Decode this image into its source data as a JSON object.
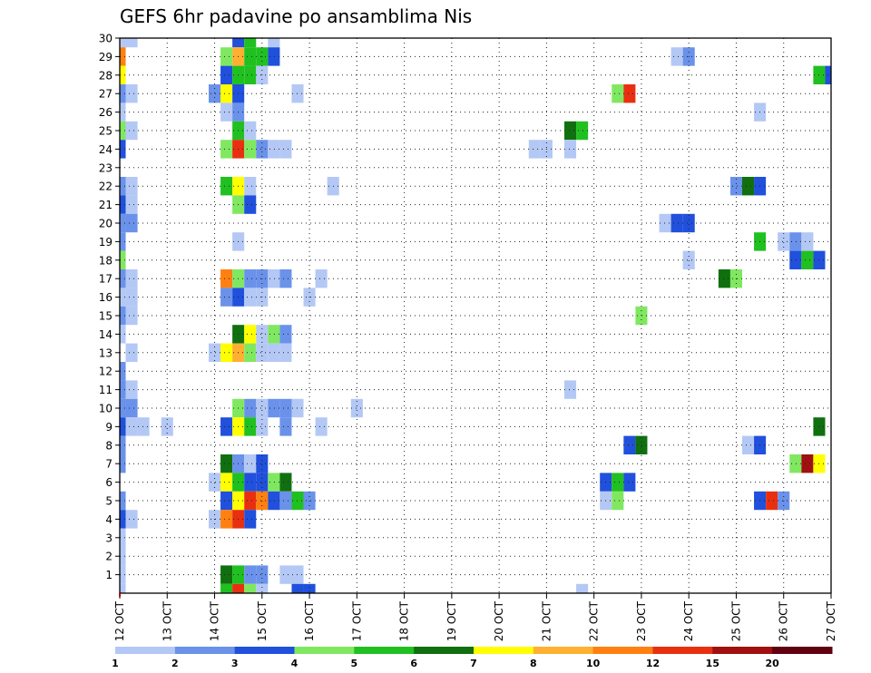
{
  "chart_data": {
    "type": "heatmap",
    "title": "GEFS 6hr padavine po ansamblima Nis",
    "xlabel": "",
    "ylabel": "",
    "x_tick_labels": [
      "12 OCT",
      "13 OCT",
      "14 OCT",
      "15 OCT",
      "16 OCT",
      "17 OCT",
      "18 OCT",
      "19 OCT",
      "20 OCT",
      "21 OCT",
      "22 OCT",
      "23 OCT",
      "24 OCT",
      "25 OCT",
      "26 OCT",
      "27 OCT"
    ],
    "y_tick_labels": [
      "1",
      "2",
      "3",
      "4",
      "5",
      "6",
      "7",
      "8",
      "9",
      "10",
      "11",
      "12",
      "13",
      "14",
      "15",
      "16",
      "17",
      "18",
      "19",
      "20",
      "21",
      "22",
      "23",
      "24",
      "25",
      "26",
      "27",
      "28",
      "29",
      "30"
    ],
    "x_unit": "6-hour step index from 12 OCT 00Z",
    "xlim": [
      0,
      60
    ],
    "ylim": [
      0,
      30
    ],
    "grid": true,
    "colorbar": {
      "labels": [
        "1",
        "2",
        "3",
        "4",
        "5",
        "6",
        "7",
        "8",
        "10",
        "12",
        "15",
        "20"
      ],
      "colors": [
        "#b4c8f5",
        "#6a92ea",
        "#2050dc",
        "#80e860",
        "#20c020",
        "#107010",
        "#ffff00",
        "#ffb030",
        "#ff8010",
        "#e83010",
        "#a01010",
        "#600010"
      ]
    },
    "cells": [
      {
        "x": 0,
        "y": 30,
        "c": 0
      },
      {
        "x": 1,
        "y": 30,
        "c": 0
      },
      {
        "x": 10,
        "y": 30,
        "c": 2
      },
      {
        "x": 11,
        "y": 30,
        "c": 4
      },
      {
        "x": 13,
        "y": 30,
        "c": 0
      },
      {
        "x": 0,
        "y": 29,
        "c": 8
      },
      {
        "x": 9,
        "y": 29,
        "c": 3
      },
      {
        "x": 10,
        "y": 29,
        "c": 7
      },
      {
        "x": 11,
        "y": 29,
        "c": 4
      },
      {
        "x": 12,
        "y": 29,
        "c": 4
      },
      {
        "x": 13,
        "y": 29,
        "c": 2
      },
      {
        "x": 47,
        "y": 29,
        "c": 0
      },
      {
        "x": 48,
        "y": 29,
        "c": 1
      },
      {
        "x": 0,
        "y": 28,
        "c": 6
      },
      {
        "x": 9,
        "y": 28,
        "c": 2
      },
      {
        "x": 10,
        "y": 28,
        "c": 4
      },
      {
        "x": 11,
        "y": 28,
        "c": 4
      },
      {
        "x": 12,
        "y": 28,
        "c": 0
      },
      {
        "x": 59,
        "y": 28,
        "c": 4
      },
      {
        "x": 60,
        "y": 28,
        "c": 2
      },
      {
        "x": 0,
        "y": 27,
        "c": 1
      },
      {
        "x": 1,
        "y": 27,
        "c": 0
      },
      {
        "x": 8,
        "y": 27,
        "c": 1
      },
      {
        "x": 9,
        "y": 27,
        "c": 6
      },
      {
        "x": 10,
        "y": 27,
        "c": 2
      },
      {
        "x": 15,
        "y": 27,
        "c": 0
      },
      {
        "x": 42,
        "y": 27,
        "c": 3
      },
      {
        "x": 43,
        "y": 27,
        "c": 9
      },
      {
        "x": 0,
        "y": 26,
        "c": 0
      },
      {
        "x": 9,
        "y": 26,
        "c": 0
      },
      {
        "x": 10,
        "y": 26,
        "c": 1
      },
      {
        "x": 54,
        "y": 26,
        "c": 0
      },
      {
        "x": 0,
        "y": 25,
        "c": 3
      },
      {
        "x": 1,
        "y": 25,
        "c": 0
      },
      {
        "x": 10,
        "y": 25,
        "c": 4
      },
      {
        "x": 11,
        "y": 25,
        "c": 0
      },
      {
        "x": 38,
        "y": 25,
        "c": 5
      },
      {
        "x": 39,
        "y": 25,
        "c": 4
      },
      {
        "x": 0,
        "y": 24,
        "c": 2
      },
      {
        "x": 9,
        "y": 24,
        "c": 3
      },
      {
        "x": 10,
        "y": 24,
        "c": 9
      },
      {
        "x": 11,
        "y": 24,
        "c": 3
      },
      {
        "x": 12,
        "y": 24,
        "c": 1
      },
      {
        "x": 13,
        "y": 24,
        "c": 0
      },
      {
        "x": 14,
        "y": 24,
        "c": 0
      },
      {
        "x": 35,
        "y": 24,
        "c": 0
      },
      {
        "x": 36,
        "y": 24,
        "c": 0
      },
      {
        "x": 38,
        "y": 24,
        "c": 0
      },
      {
        "x": 0,
        "y": 22,
        "c": 1
      },
      {
        "x": 1,
        "y": 22,
        "c": 0
      },
      {
        "x": 9,
        "y": 22,
        "c": 4
      },
      {
        "x": 10,
        "y": 22,
        "c": 6
      },
      {
        "x": 11,
        "y": 22,
        "c": 0
      },
      {
        "x": 18,
        "y": 22,
        "c": 0
      },
      {
        "x": 52,
        "y": 22,
        "c": 1
      },
      {
        "x": 53,
        "y": 22,
        "c": 5
      },
      {
        "x": 54,
        "y": 22,
        "c": 2
      },
      {
        "x": 0,
        "y": 21,
        "c": 2
      },
      {
        "x": 1,
        "y": 21,
        "c": 0
      },
      {
        "x": 10,
        "y": 21,
        "c": 3
      },
      {
        "x": 11,
        "y": 21,
        "c": 2
      },
      {
        "x": 0,
        "y": 20,
        "c": 1
      },
      {
        "x": 1,
        "y": 20,
        "c": 1
      },
      {
        "x": 46,
        "y": 20,
        "c": 0
      },
      {
        "x": 47,
        "y": 20,
        "c": 2
      },
      {
        "x": 48,
        "y": 20,
        "c": 2
      },
      {
        "x": 0,
        "y": 19,
        "c": 1
      },
      {
        "x": 10,
        "y": 19,
        "c": 0
      },
      {
        "x": 54,
        "y": 19,
        "c": 4
      },
      {
        "x": 56,
        "y": 19,
        "c": 0
      },
      {
        "x": 57,
        "y": 19,
        "c": 1
      },
      {
        "x": 58,
        "y": 19,
        "c": 0
      },
      {
        "x": 0,
        "y": 18,
        "c": 3
      },
      {
        "x": 48,
        "y": 18,
        "c": 0
      },
      {
        "x": 57,
        "y": 18,
        "c": 2
      },
      {
        "x": 58,
        "y": 18,
        "c": 4
      },
      {
        "x": 59,
        "y": 18,
        "c": 2
      },
      {
        "x": 0,
        "y": 17,
        "c": 1
      },
      {
        "x": 1,
        "y": 17,
        "c": 0
      },
      {
        "x": 9,
        "y": 17,
        "c": 8
      },
      {
        "x": 10,
        "y": 17,
        "c": 3
      },
      {
        "x": 11,
        "y": 17,
        "c": 1
      },
      {
        "x": 12,
        "y": 17,
        "c": 1
      },
      {
        "x": 13,
        "y": 17,
        "c": 0
      },
      {
        "x": 14,
        "y": 17,
        "c": 1
      },
      {
        "x": 17,
        "y": 17,
        "c": 0
      },
      {
        "x": 51,
        "y": 17,
        "c": 5
      },
      {
        "x": 52,
        "y": 17,
        "c": 3
      },
      {
        "x": 0,
        "y": 16,
        "c": 0
      },
      {
        "x": 1,
        "y": 16,
        "c": 0
      },
      {
        "x": 9,
        "y": 16,
        "c": 1
      },
      {
        "x": 10,
        "y": 16,
        "c": 2
      },
      {
        "x": 11,
        "y": 16,
        "c": 0
      },
      {
        "x": 12,
        "y": 16,
        "c": 0
      },
      {
        "x": 16,
        "y": 16,
        "c": 0
      },
      {
        "x": 0,
        "y": 15,
        "c": 1
      },
      {
        "x": 1,
        "y": 15,
        "c": 0
      },
      {
        "x": 44,
        "y": 15,
        "c": 3
      },
      {
        "x": 0,
        "y": 14,
        "c": 0
      },
      {
        "x": 10,
        "y": 14,
        "c": 5
      },
      {
        "x": 11,
        "y": 14,
        "c": 6
      },
      {
        "x": 12,
        "y": 14,
        "c": 0
      },
      {
        "x": 13,
        "y": 14,
        "c": 3
      },
      {
        "x": 14,
        "y": 14,
        "c": 1
      },
      {
        "x": 1,
        "y": 13,
        "c": 0
      },
      {
        "x": 8,
        "y": 13,
        "c": 0
      },
      {
        "x": 9,
        "y": 13,
        "c": 6
      },
      {
        "x": 10,
        "y": 13,
        "c": 7
      },
      {
        "x": 11,
        "y": 13,
        "c": 3
      },
      {
        "x": 12,
        "y": 13,
        "c": 0
      },
      {
        "x": 13,
        "y": 13,
        "c": 0
      },
      {
        "x": 14,
        "y": 13,
        "c": 0
      },
      {
        "x": 0,
        "y": 12,
        "c": 1
      },
      {
        "x": 0,
        "y": 11,
        "c": 1
      },
      {
        "x": 1,
        "y": 11,
        "c": 0
      },
      {
        "x": 38,
        "y": 11,
        "c": 0
      },
      {
        "x": 0,
        "y": 10,
        "c": 1
      },
      {
        "x": 1,
        "y": 10,
        "c": 1
      },
      {
        "x": 10,
        "y": 10,
        "c": 3
      },
      {
        "x": 11,
        "y": 10,
        "c": 1
      },
      {
        "x": 12,
        "y": 10,
        "c": 0
      },
      {
        "x": 13,
        "y": 10,
        "c": 1
      },
      {
        "x": 14,
        "y": 10,
        "c": 1
      },
      {
        "x": 15,
        "y": 10,
        "c": 0
      },
      {
        "x": 20,
        "y": 10,
        "c": 0
      },
      {
        "x": 0,
        "y": 9,
        "c": 2
      },
      {
        "x": 1,
        "y": 9,
        "c": 0
      },
      {
        "x": 2,
        "y": 9,
        "c": 0
      },
      {
        "x": 4,
        "y": 9,
        "c": 0
      },
      {
        "x": 9,
        "y": 9,
        "c": 2
      },
      {
        "x": 10,
        "y": 9,
        "c": 6
      },
      {
        "x": 11,
        "y": 9,
        "c": 4
      },
      {
        "x": 12,
        "y": 9,
        "c": 0
      },
      {
        "x": 14,
        "y": 9,
        "c": 1
      },
      {
        "x": 17,
        "y": 9,
        "c": 0
      },
      {
        "x": 59,
        "y": 9,
        "c": 5
      },
      {
        "x": 0,
        "y": 8,
        "c": 1
      },
      {
        "x": 43,
        "y": 8,
        "c": 2
      },
      {
        "x": 44,
        "y": 8,
        "c": 5
      },
      {
        "x": 53,
        "y": 8,
        "c": 0
      },
      {
        "x": 54,
        "y": 8,
        "c": 2
      },
      {
        "x": 0,
        "y": 7,
        "c": 1
      },
      {
        "x": 9,
        "y": 7,
        "c": 5
      },
      {
        "x": 10,
        "y": 7,
        "c": 1
      },
      {
        "x": 11,
        "y": 7,
        "c": 0
      },
      {
        "x": 12,
        "y": 7,
        "c": 2
      },
      {
        "x": 57,
        "y": 7,
        "c": 3
      },
      {
        "x": 58,
        "y": 7,
        "c": 10
      },
      {
        "x": 59,
        "y": 7,
        "c": 6
      },
      {
        "x": 8,
        "y": 6,
        "c": 0
      },
      {
        "x": 9,
        "y": 6,
        "c": 6
      },
      {
        "x": 10,
        "y": 6,
        "c": 4
      },
      {
        "x": 11,
        "y": 6,
        "c": 2
      },
      {
        "x": 12,
        "y": 6,
        "c": 2
      },
      {
        "x": 13,
        "y": 6,
        "c": 3
      },
      {
        "x": 14,
        "y": 6,
        "c": 5
      },
      {
        "x": 41,
        "y": 6,
        "c": 2
      },
      {
        "x": 42,
        "y": 6,
        "c": 4
      },
      {
        "x": 43,
        "y": 6,
        "c": 2
      },
      {
        "x": 0,
        "y": 5,
        "c": 1
      },
      {
        "x": 9,
        "y": 5,
        "c": 2
      },
      {
        "x": 10,
        "y": 5,
        "c": 6
      },
      {
        "x": 11,
        "y": 5,
        "c": 9
      },
      {
        "x": 12,
        "y": 5,
        "c": 8
      },
      {
        "x": 13,
        "y": 5,
        "c": 2
      },
      {
        "x": 14,
        "y": 5,
        "c": 1
      },
      {
        "x": 15,
        "y": 5,
        "c": 4
      },
      {
        "x": 16,
        "y": 5,
        "c": 1
      },
      {
        "x": 41,
        "y": 5,
        "c": 0
      },
      {
        "x": 42,
        "y": 5,
        "c": 3
      },
      {
        "x": 54,
        "y": 5,
        "c": 2
      },
      {
        "x": 55,
        "y": 5,
        "c": 9
      },
      {
        "x": 56,
        "y": 5,
        "c": 1
      },
      {
        "x": 0,
        "y": 4,
        "c": 2
      },
      {
        "x": 1,
        "y": 4,
        "c": 0
      },
      {
        "x": 8,
        "y": 4,
        "c": 0
      },
      {
        "x": 9,
        "y": 4,
        "c": 8
      },
      {
        "x": 10,
        "y": 4,
        "c": 9
      },
      {
        "x": 11,
        "y": 4,
        "c": 2
      },
      {
        "x": 0,
        "y": 3,
        "c": 0
      },
      {
        "x": 0,
        "y": 2,
        "c": 0
      },
      {
        "x": 0,
        "y": 1,
        "c": 0
      },
      {
        "x": 9,
        "y": 1,
        "c": 5
      },
      {
        "x": 10,
        "y": 1,
        "c": 4
      },
      {
        "x": 11,
        "y": 1,
        "c": 1
      },
      {
        "x": 12,
        "y": 1,
        "c": 1
      },
      {
        "x": 14,
        "y": 1,
        "c": 0
      },
      {
        "x": 15,
        "y": 1,
        "c": 0
      },
      {
        "x": 0,
        "y": 0,
        "c": 0
      },
      {
        "x": 9,
        "y": 0,
        "c": 4
      },
      {
        "x": 10,
        "y": 0,
        "c": 9
      },
      {
        "x": 11,
        "y": 0,
        "c": 3
      },
      {
        "x": 12,
        "y": 0,
        "c": 0
      },
      {
        "x": 15,
        "y": 0,
        "c": 2
      },
      {
        "x": 16,
        "y": 0,
        "c": 2
      },
      {
        "x": 39,
        "y": 0,
        "c": 0
      }
    ]
  }
}
